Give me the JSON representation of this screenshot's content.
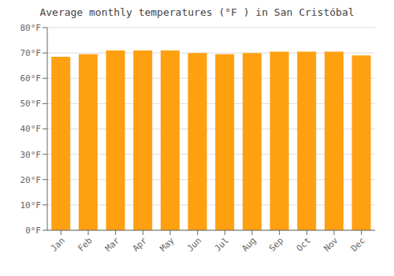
{
  "chart_data": {
    "type": "bar",
    "title": "Average monthly temperatures (°F ) in San Cristóbal",
    "categories": [
      "Jan",
      "Feb",
      "Mar",
      "Apr",
      "May",
      "Jun",
      "Jul",
      "Aug",
      "Sep",
      "Oct",
      "Nov",
      "Dec"
    ],
    "values": [
      68.5,
      69.5,
      71.0,
      71.0,
      71.0,
      70.0,
      69.5,
      70.0,
      70.5,
      70.5,
      70.5,
      69.0
    ],
    "color": "#FFA010",
    "ylim": [
      0,
      80
    ],
    "yticks": [
      {
        "value": 0,
        "label": "0°F"
      },
      {
        "value": 10,
        "label": "10°F"
      },
      {
        "value": 20,
        "label": "20°F"
      },
      {
        "value": 30,
        "label": "30°F"
      },
      {
        "value": 40,
        "label": "40°F"
      },
      {
        "value": 50,
        "label": "50°F"
      },
      {
        "value": 60,
        "label": "60°F"
      },
      {
        "value": 70,
        "label": "70°F"
      },
      {
        "value": 80,
        "label": "80°F"
      }
    ],
    "grid": true
  }
}
